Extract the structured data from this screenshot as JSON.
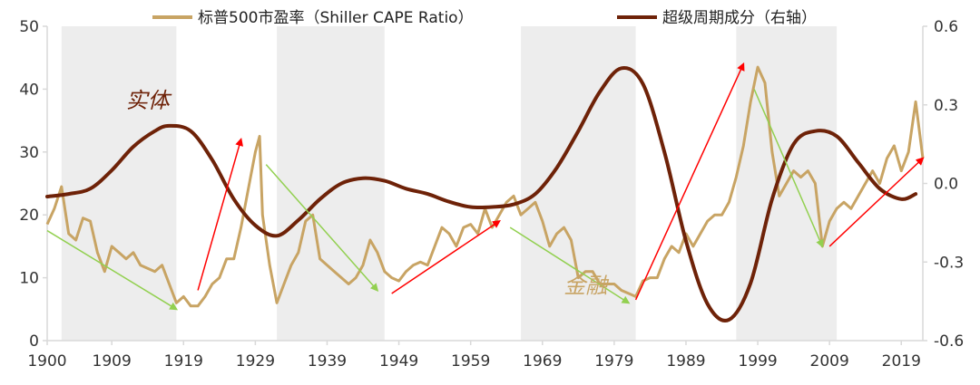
{
  "chart_data": {
    "type": "line",
    "x_ticks": [
      1900,
      1909,
      1919,
      1929,
      1939,
      1949,
      1959,
      1969,
      1979,
      1989,
      1999,
      2009,
      2019
    ],
    "xlim": [
      1900,
      2022
    ],
    "ylim_left": [
      0,
      50
    ],
    "yticks_left": [
      0,
      10,
      20,
      30,
      40,
      50
    ],
    "ylim_right": [
      -0.6,
      0.6
    ],
    "yticks_right": [
      "-0.6",
      "-0.3",
      "0.0",
      "0.3",
      "0.6"
    ],
    "legend_position": "top",
    "colors": {
      "cape": "#C8A464",
      "cycle": "#6E2208",
      "shade": "#EDEDED",
      "up_arrow": "#FF0000",
      "down_arrow": "#92D050",
      "axis": "#D9D9D9"
    },
    "shaded_periods": [
      [
        1902,
        1918
      ],
      [
        1932,
        1947
      ],
      [
        1966,
        1982
      ],
      [
        1996,
        2010
      ]
    ],
    "series": [
      {
        "name": "标普500市盈率（Shiller CAPE Ratio）",
        "axis": "left",
        "x": [
          1900,
          1901,
          1902,
          1903,
          1904,
          1905,
          1906,
          1907,
          1908,
          1909,
          1910,
          1911,
          1912,
          1913,
          1914,
          1915,
          1916,
          1917,
          1918,
          1919,
          1920,
          1921,
          1922,
          1923,
          1924,
          1925,
          1926,
          1927,
          1928,
          1929,
          1929.6,
          1930,
          1931,
          1932,
          1933,
          1934,
          1935,
          1936,
          1937,
          1938,
          1939,
          1940,
          1941,
          1942,
          1943,
          1944,
          1945,
          1946,
          1947,
          1948,
          1949,
          1950,
          1951,
          1952,
          1953,
          1954,
          1955,
          1956,
          1957,
          1958,
          1959,
          1960,
          1961,
          1962,
          1963,
          1964,
          1965,
          1966,
          1967,
          1968,
          1969,
          1970,
          1971,
          1972,
          1973,
          1974,
          1975,
          1976,
          1977,
          1978,
          1979,
          1980,
          1981,
          1982,
          1983,
          1984,
          1985,
          1986,
          1987,
          1988,
          1989,
          1990,
          1991,
          1992,
          1993,
          1994,
          1995,
          1996,
          1997,
          1998,
          1999,
          2000,
          2001,
          2002,
          2003,
          2004,
          2005,
          2006,
          2007,
          2008,
          2009,
          2010,
          2011,
          2012,
          2013,
          2014,
          2015,
          2016,
          2017,
          2018,
          2019,
          2020,
          2021,
          2022
        ],
        "values": [
          18.5,
          21,
          24.5,
          17,
          16,
          19.5,
          19,
          14,
          11,
          15,
          14,
          13,
          14,
          12,
          11.5,
          11,
          12,
          9,
          6,
          7,
          5.5,
          5.5,
          7,
          9,
          10,
          13,
          13,
          18,
          24,
          30,
          32.5,
          20,
          12,
          6,
          9,
          12,
          14,
          19,
          20,
          13,
          12,
          11,
          10,
          9,
          10,
          12,
          16,
          14,
          11,
          10,
          9.5,
          11,
          12,
          12.5,
          12,
          15,
          18,
          17,
          15,
          18,
          18.5,
          17,
          21,
          18,
          20,
          22,
          23,
          20,
          21,
          22,
          19,
          15,
          17,
          18,
          16,
          10,
          11,
          11,
          9,
          9,
          9,
          8,
          7.5,
          7,
          9.5,
          10,
          10,
          13,
          15,
          14,
          17,
          15,
          17,
          19,
          20,
          20,
          22,
          26,
          31,
          38,
          43.5,
          41,
          30,
          23,
          25,
          27,
          26,
          27,
          25,
          15,
          19,
          21,
          22,
          21,
          23,
          25,
          27,
          25,
          29,
          31,
          27,
          30,
          38,
          29
        ]
      },
      {
        "name": "超级周期成分（右轴）",
        "axis": "right",
        "x": [
          1900,
          1903,
          1906,
          1909,
          1912,
          1915,
          1917,
          1920,
          1923,
          1926,
          1929,
          1932,
          1935,
          1938,
          1941,
          1944,
          1947,
          1950,
          1953,
          1956,
          1959,
          1962,
          1965,
          1968,
          1971,
          1974,
          1977,
          1980,
          1983,
          1986,
          1989,
          1992,
          1995,
          1998,
          2001,
          2004,
          2007,
          2010,
          2013,
          2016,
          2019,
          2021
        ],
        "values": [
          -0.05,
          -0.04,
          -0.02,
          0.05,
          0.14,
          0.2,
          0.22,
          0.2,
          0.09,
          -0.06,
          -0.16,
          -0.2,
          -0.14,
          -0.06,
          0.0,
          0.02,
          0.01,
          -0.02,
          -0.04,
          -0.07,
          -0.09,
          -0.09,
          -0.08,
          -0.04,
          0.06,
          0.2,
          0.35,
          0.44,
          0.38,
          0.12,
          -0.22,
          -0.46,
          -0.52,
          -0.38,
          -0.06,
          0.15,
          0.2,
          0.18,
          0.08,
          -0.02,
          -0.06,
          -0.04
        ]
      }
    ],
    "arrows": [
      {
        "kind": "down",
        "from": [
          1900,
          17.5
        ],
        "to": [
          1918,
          5
        ]
      },
      {
        "kind": "up",
        "from": [
          1921,
          8
        ],
        "to": [
          1927,
          32
        ]
      },
      {
        "kind": "down",
        "from": [
          1930.5,
          28
        ],
        "to": [
          1946,
          8
        ]
      },
      {
        "kind": "up",
        "from": [
          1948,
          7.5
        ],
        "to": [
          1963,
          19
        ]
      },
      {
        "kind": "down",
        "from": [
          1964.5,
          18
        ],
        "to": [
          1981,
          6
        ]
      },
      {
        "kind": "up",
        "from": [
          1982,
          6.5
        ],
        "to": [
          1997,
          44
        ]
      },
      {
        "kind": "down",
        "from": [
          1998.5,
          40
        ],
        "to": [
          2008,
          15
        ]
      },
      {
        "kind": "up",
        "from": [
          2009,
          15
        ],
        "to": [
          2022,
          29
        ]
      }
    ],
    "annotations": [
      {
        "text": "实体",
        "x": 1914,
        "y": 37,
        "color": "#6E2208"
      },
      {
        "text": "金融",
        "x": 1975,
        "y": 7.6,
        "color": "#C8A464"
      }
    ]
  }
}
